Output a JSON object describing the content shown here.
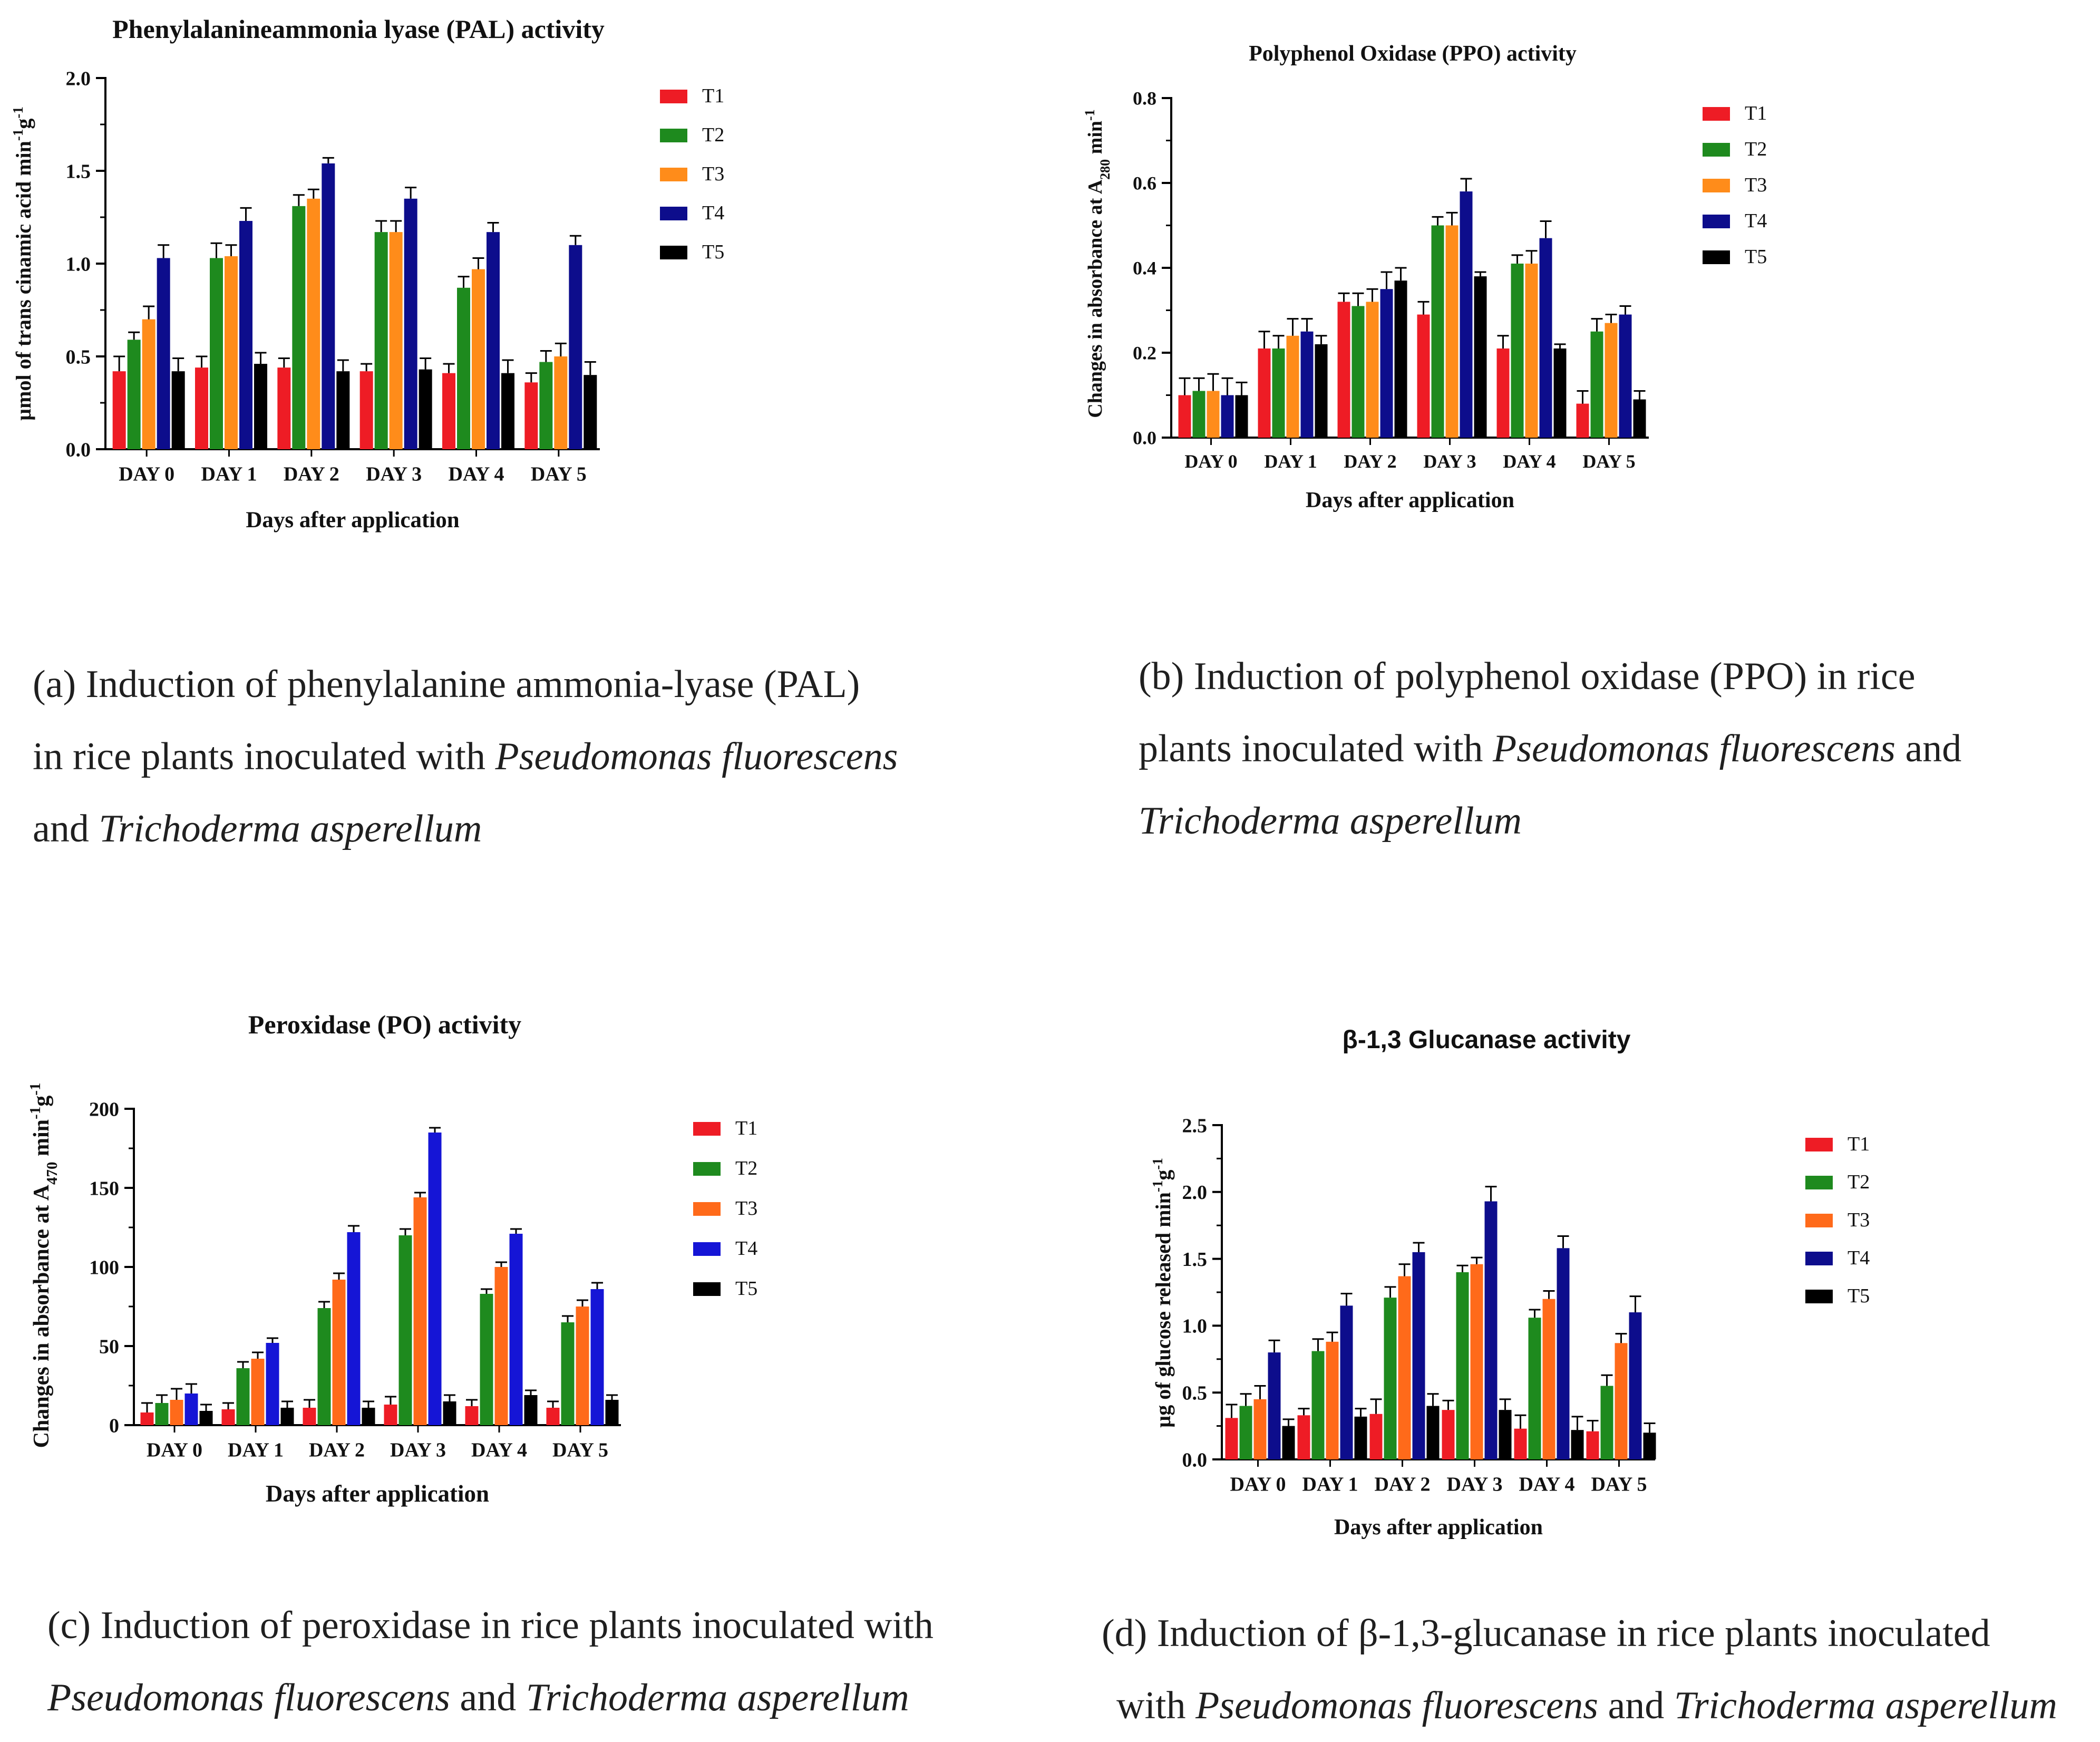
{
  "chart_data": [
    {
      "id": "a",
      "type": "bar",
      "title": "Phenylalanineammonia lyase (PAL) activity",
      "title_font": "serif",
      "xlabel": "Days after application",
      "ylabel": "µmol of trans cinamic acid min-1g-1",
      "ylabel_parts": {
        "base": "µmol of trans cinamic acid min",
        "s1": "-1",
        "mid": "g",
        "s2": "-1"
      },
      "categories": [
        "DAY 0",
        "DAY 1",
        "DAY 2",
        "DAY 3",
        "DAY 4",
        "DAY 5"
      ],
      "ylim": [
        0,
        2.0
      ],
      "yticks": [
        "0.0",
        "0.5",
        "1.0",
        "1.5",
        "2.0"
      ],
      "ytick_values": [
        0,
        0.5,
        1.0,
        1.5,
        2.0
      ],
      "series": [
        {
          "name": "T1",
          "color": "#ee1c25",
          "values": [
            0.42,
            0.44,
            0.44,
            0.42,
            0.41,
            0.36
          ],
          "errors": [
            0.08,
            0.06,
            0.05,
            0.04,
            0.05,
            0.05
          ]
        },
        {
          "name": "T2",
          "color": "#1e8a1e",
          "values": [
            0.59,
            1.03,
            1.31,
            1.17,
            0.87,
            0.47
          ],
          "errors": [
            0.04,
            0.08,
            0.06,
            0.06,
            0.06,
            0.06
          ]
        },
        {
          "name": "T3",
          "color": "#ff8c1a",
          "values": [
            0.7,
            1.04,
            1.35,
            1.17,
            0.97,
            0.5
          ],
          "errors": [
            0.07,
            0.06,
            0.05,
            0.06,
            0.06,
            0.07
          ]
        },
        {
          "name": "T4",
          "color": "#0d0d8c",
          "values": [
            1.03,
            1.23,
            1.54,
            1.35,
            1.17,
            1.1
          ],
          "errors": [
            0.07,
            0.07,
            0.03,
            0.06,
            0.05,
            0.05
          ]
        },
        {
          "name": "T5",
          "color": "#000000",
          "values": [
            0.42,
            0.46,
            0.42,
            0.43,
            0.41,
            0.4
          ],
          "errors": [
            0.07,
            0.06,
            0.06,
            0.06,
            0.07,
            0.07
          ]
        }
      ]
    },
    {
      "id": "b",
      "type": "bar",
      "title": "Polyphenol Oxidase (PPO) activity",
      "title_font": "serif",
      "xlabel": "Days after application",
      "ylabel": "Changes in absorbance at A280 min-1",
      "ylabel_parts": {
        "base": "Changes in absorbance at A",
        "sub": "280",
        "mid": " min",
        "s1": "-1"
      },
      "categories": [
        "DAY 0",
        "DAY 1",
        "DAY 2",
        "DAY 3",
        "DAY 4",
        "DAY 5"
      ],
      "ylim": [
        0,
        0.8
      ],
      "yticks": [
        "0.0",
        "0.2",
        "0.4",
        "0.6",
        "0.8"
      ],
      "ytick_values": [
        0,
        0.2,
        0.4,
        0.6,
        0.8
      ],
      "series": [
        {
          "name": "T1",
          "color": "#ee1c25",
          "values": [
            0.1,
            0.21,
            0.32,
            0.29,
            0.21,
            0.08
          ],
          "errors": [
            0.04,
            0.04,
            0.02,
            0.03,
            0.03,
            0.03
          ]
        },
        {
          "name": "T2",
          "color": "#1e8a1e",
          "values": [
            0.11,
            0.21,
            0.31,
            0.5,
            0.41,
            0.25
          ],
          "errors": [
            0.03,
            0.03,
            0.03,
            0.02,
            0.02,
            0.03
          ]
        },
        {
          "name": "T3",
          "color": "#ff8c1a",
          "values": [
            0.11,
            0.24,
            0.32,
            0.5,
            0.41,
            0.27
          ],
          "errors": [
            0.04,
            0.04,
            0.03,
            0.03,
            0.03,
            0.02
          ]
        },
        {
          "name": "T4",
          "color": "#0d0d8c",
          "values": [
            0.1,
            0.25,
            0.35,
            0.58,
            0.47,
            0.29
          ],
          "errors": [
            0.04,
            0.03,
            0.04,
            0.03,
            0.04,
            0.02
          ]
        },
        {
          "name": "T5",
          "color": "#000000",
          "values": [
            0.1,
            0.22,
            0.37,
            0.38,
            0.21,
            0.09
          ],
          "errors": [
            0.03,
            0.02,
            0.03,
            0.01,
            0.01,
            0.02
          ]
        }
      ]
    },
    {
      "id": "c",
      "type": "bar",
      "title": "Peroxidase (PO) activity",
      "title_font": "serif",
      "xlabel": "Days after application",
      "ylabel": "Changes in absorbance at A470 min-1g-1",
      "ylabel_parts": {
        "base": "Changes in absorbance at A",
        "sub": "470",
        "mid": " min",
        "s1": "-1",
        "mid2": "g",
        "s2": "-1"
      },
      "categories": [
        "DAY 0",
        "DAY 1",
        "DAY 2",
        "DAY 3",
        "DAY 4",
        "DAY 5"
      ],
      "ylim": [
        0,
        200
      ],
      "yticks": [
        "0",
        "50",
        "100",
        "150",
        "200"
      ],
      "ytick_values": [
        0,
        50,
        100,
        150,
        200
      ],
      "series": [
        {
          "name": "T1",
          "color": "#ee1c25",
          "values": [
            8,
            10,
            11,
            13,
            12,
            11
          ],
          "errors": [
            6,
            4,
            5,
            5,
            4,
            4
          ]
        },
        {
          "name": "T2",
          "color": "#1e8a1e",
          "values": [
            14,
            36,
            74,
            120,
            83,
            65
          ],
          "errors": [
            5,
            4,
            4,
            4,
            3,
            4
          ]
        },
        {
          "name": "T3",
          "color": "#ff6a1a",
          "values": [
            16,
            42,
            92,
            144,
            100,
            75
          ],
          "errors": [
            7,
            4,
            4,
            3,
            3,
            4
          ]
        },
        {
          "name": "T4",
          "color": "#1515d6",
          "values": [
            20,
            52,
            122,
            185,
            121,
            86
          ],
          "errors": [
            6,
            3,
            4,
            3,
            3,
            4
          ]
        },
        {
          "name": "T5",
          "color": "#000000",
          "values": [
            9,
            11,
            11,
            15,
            19,
            16
          ],
          "errors": [
            4,
            4,
            4,
            4,
            3,
            3
          ]
        }
      ]
    },
    {
      "id": "d",
      "type": "bar",
      "title": "β-1,3 Glucanase activity",
      "title_font": "sans",
      "xlabel": "Days after application",
      "ylabel": "µg of glucose released min-1g-1",
      "ylabel_parts": {
        "base": "µg of glucose released min",
        "s1": "-1",
        "mid": "g",
        "s2": "-1"
      },
      "categories": [
        "DAY 0",
        "DAY 1",
        "DAY 2",
        "DAY 3",
        "DAY 4",
        "DAY 5"
      ],
      "ylim": [
        0,
        2.5
      ],
      "yticks": [
        "0.0",
        "0.5",
        "1.0",
        "1.5",
        "2.0",
        "2.5"
      ],
      "ytick_values": [
        0,
        0.5,
        1.0,
        1.5,
        2.0,
        2.5
      ],
      "series": [
        {
          "name": "T1",
          "color": "#ee1c25",
          "values": [
            0.31,
            0.33,
            0.34,
            0.37,
            0.23,
            0.21
          ],
          "errors": [
            0.1,
            0.05,
            0.11,
            0.07,
            0.1,
            0.08
          ]
        },
        {
          "name": "T2",
          "color": "#1e8a1e",
          "values": [
            0.4,
            0.81,
            1.21,
            1.4,
            1.06,
            0.55
          ],
          "errors": [
            0.09,
            0.09,
            0.08,
            0.05,
            0.06,
            0.08
          ]
        },
        {
          "name": "T3",
          "color": "#ff6a1a",
          "values": [
            0.45,
            0.88,
            1.37,
            1.46,
            1.2,
            0.87
          ],
          "errors": [
            0.1,
            0.07,
            0.09,
            0.05,
            0.06,
            0.07
          ]
        },
        {
          "name": "T4",
          "color": "#0d0d8c",
          "values": [
            0.8,
            1.15,
            1.55,
            1.93,
            1.58,
            1.1
          ],
          "errors": [
            0.09,
            0.09,
            0.07,
            0.11,
            0.09,
            0.12
          ]
        },
        {
          "name": "T5",
          "color": "#000000",
          "values": [
            0.25,
            0.32,
            0.4,
            0.37,
            0.22,
            0.2
          ],
          "errors": [
            0.05,
            0.06,
            0.09,
            0.08,
            0.1,
            0.07
          ]
        }
      ]
    }
  ],
  "captions": {
    "a": {
      "line1": "(a) Induction of phenylalanine ammonia-lyase (PAL)",
      "line2_pre": "in rice plants inoculated with ",
      "line2_em": "Pseudomonas fluorescens",
      "line3_pre": "and ",
      "line3_em": "Trichoderma asperellum"
    },
    "b": {
      "line1": "(b) Induction of polyphenol oxidase (PPO) in rice",
      "line2_pre": "plants inoculated with ",
      "line2_em": "Pseudomonas fluorescens",
      "line2_post": " and",
      "line3_em": "Trichoderma asperellum"
    },
    "c": {
      "line1": "(c) Induction of peroxidase in rice plants inoculated with",
      "line2_em1": "Pseudomonas fluorescens",
      "line2_mid": " and ",
      "line2_em2": "Trichoderma asperellum"
    },
    "d": {
      "line1": "(d) Induction of β-1,3-glucanase in rice plants inoculated",
      "line2_pre": "with ",
      "line2_em1": "Pseudomonas fluorescens",
      "line2_mid": " and ",
      "line2_em2": "Trichoderma asperellum"
    }
  }
}
